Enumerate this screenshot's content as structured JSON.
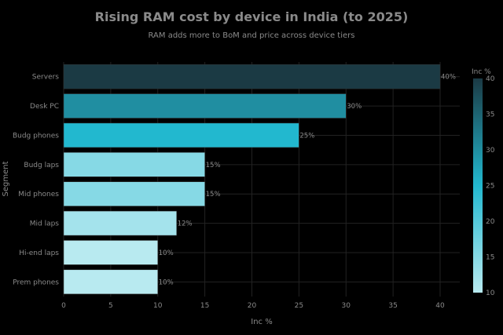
{
  "chart_data": {
    "type": "bar",
    "orientation": "horizontal",
    "title": "Rising RAM cost by device in India (to 2025)",
    "subtitle": "RAM adds more to BoM and price across device tiers",
    "xlabel": "Inc %",
    "ylabel": "Segment",
    "categories": [
      "Servers",
      "Desk PC",
      "Budg phones",
      "Budg laps",
      "Mid phones",
      "Mid laps",
      "Hi-end laps",
      "Prem phones"
    ],
    "values": [
      40,
      30,
      25,
      15,
      15,
      12,
      10,
      10
    ],
    "data_labels": [
      "40%",
      "30%",
      "25%",
      "15%",
      "15%",
      "12%",
      "10%",
      "10%"
    ],
    "xlim": [
      0,
      42
    ],
    "xticks": [
      0,
      5,
      10,
      15,
      20,
      25,
      30,
      35,
      40
    ],
    "grid": true,
    "colorbar": {
      "title": "Inc %",
      "range": [
        10,
        40
      ],
      "ticks": [
        10,
        15,
        20,
        25,
        30,
        35,
        40
      ],
      "colors": [
        "#b8eaf0",
        "#22b8cf",
        "#1b3a44"
      ]
    }
  }
}
